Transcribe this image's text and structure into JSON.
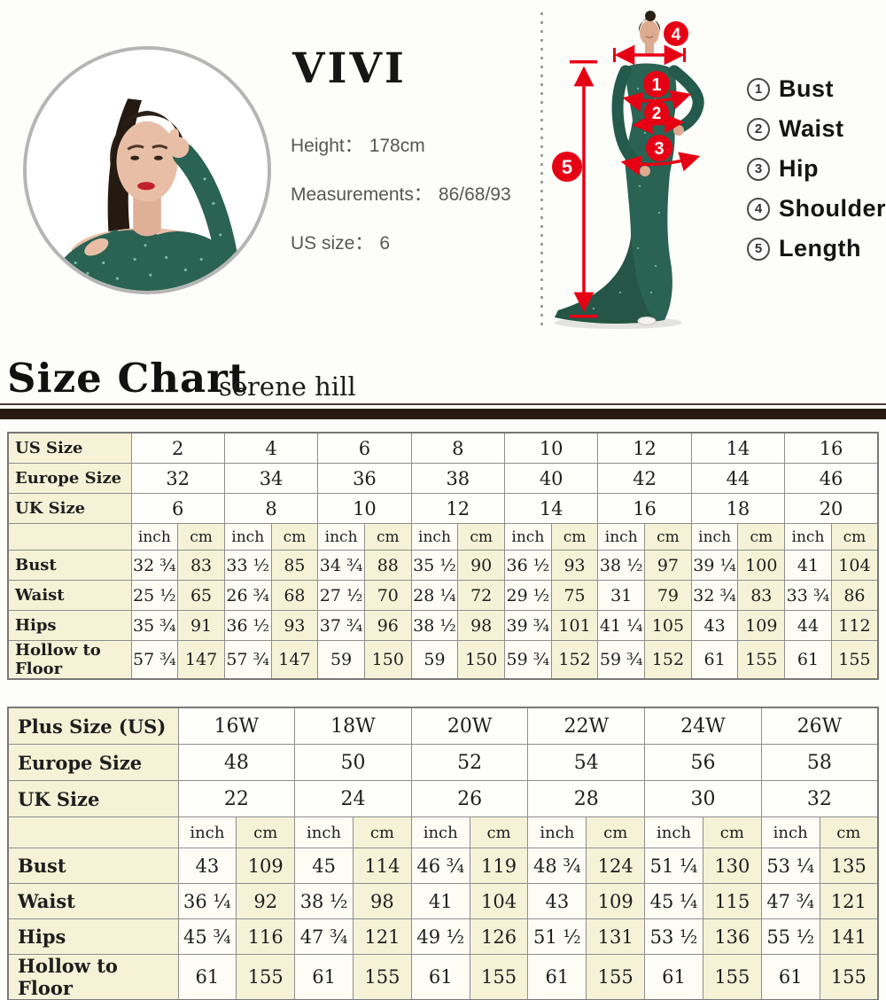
{
  "hero": {
    "brand": "VIVI",
    "info": [
      {
        "label": "Height：",
        "value": "178cm"
      },
      {
        "label": "Measurements：",
        "value": "86/68/93"
      },
      {
        "label": "US size：",
        "value": "6"
      }
    ],
    "figure_markers": {
      "m1": "1",
      "m2": "2",
      "m3": "3",
      "m4": "4",
      "m5": "5"
    },
    "legend": [
      {
        "num": "1",
        "label": "Bust"
      },
      {
        "num": "2",
        "label": "Waist"
      },
      {
        "num": "3",
        "label": "Hip"
      },
      {
        "num": "4",
        "label": "Shoulder"
      },
      {
        "num": "5",
        "label": "Length"
      }
    ]
  },
  "section_header": {
    "title": "Size Chart",
    "subtitle": "serene hill"
  },
  "colors": {
    "accent_red": "#e60014",
    "table_cream": "#f5f2d7",
    "bar_brown": "#281a10",
    "dress_green": "#2a6253",
    "ring_gray": "#b5b5b5"
  },
  "size_table": {
    "header_rows": [
      {
        "label": "US Size",
        "values": [
          "2",
          "4",
          "6",
          "8",
          "10",
          "12",
          "14",
          "16"
        ]
      },
      {
        "label": "Europe Size",
        "values": [
          "32",
          "34",
          "36",
          "38",
          "40",
          "42",
          "44",
          "46"
        ]
      },
      {
        "label": "UK Size",
        "values": [
          "6",
          "8",
          "10",
          "12",
          "14",
          "16",
          "18",
          "20"
        ]
      }
    ],
    "units": [
      "inch",
      "cm"
    ],
    "data_rows": [
      {
        "label": "Bust",
        "values": [
          "32 ¾",
          "83",
          "33 ½",
          "85",
          "34 ¾",
          "88",
          "35 ½",
          "90",
          "36 ½",
          "93",
          "38 ½",
          "97",
          "39 ¼",
          "100",
          "41",
          "104"
        ]
      },
      {
        "label": "Waist",
        "values": [
          "25 ½",
          "65",
          "26 ¾",
          "68",
          "27 ½",
          "70",
          "28 ¼",
          "72",
          "29 ½",
          "75",
          "31",
          "79",
          "32 ¾",
          "83",
          "33 ¾",
          "86"
        ]
      },
      {
        "label": "Hips",
        "values": [
          "35 ¾",
          "91",
          "36 ½",
          "93",
          "37 ¾",
          "96",
          "38 ½",
          "98",
          "39 ¾",
          "101",
          "41 ¼",
          "105",
          "43",
          "109",
          "44",
          "112"
        ]
      },
      {
        "label": "Hollow to Floor",
        "values": [
          "57 ¾",
          "147",
          "57 ¾",
          "147",
          "59",
          "150",
          "59",
          "150",
          "59 ¾",
          "152",
          "59 ¾",
          "152",
          "61",
          "155",
          "61",
          "155"
        ]
      }
    ]
  },
  "plus_table": {
    "header_rows": [
      {
        "label": "Plus Size (US)",
        "values": [
          "16W",
          "18W",
          "20W",
          "22W",
          "24W",
          "26W"
        ]
      },
      {
        "label": "Europe Size",
        "values": [
          "48",
          "50",
          "52",
          "54",
          "56",
          "58"
        ]
      },
      {
        "label": "UK Size",
        "values": [
          "22",
          "24",
          "26",
          "28",
          "30",
          "32"
        ]
      }
    ],
    "units": [
      "inch",
      "cm"
    ],
    "data_rows": [
      {
        "label": "Bust",
        "values": [
          "43",
          "109",
          "45",
          "114",
          "46 ¾",
          "119",
          "48 ¾",
          "124",
          "51 ¼",
          "130",
          "53 ¼",
          "135"
        ]
      },
      {
        "label": "Waist",
        "values": [
          "36 ¼",
          "92",
          "38 ½",
          "98",
          "41",
          "104",
          "43",
          "109",
          "45 ¼",
          "115",
          "47 ¾",
          "121"
        ]
      },
      {
        "label": "Hips",
        "values": [
          "45 ¾",
          "116",
          "47 ¾",
          "121",
          "49 ½",
          "126",
          "51 ½",
          "131",
          "53 ½",
          "136",
          "55 ½",
          "141"
        ]
      },
      {
        "label": "Hollow to Floor",
        "values": [
          "61",
          "155",
          "61",
          "155",
          "61",
          "155",
          "61",
          "155",
          "61",
          "155",
          "61",
          "155"
        ]
      }
    ]
  }
}
